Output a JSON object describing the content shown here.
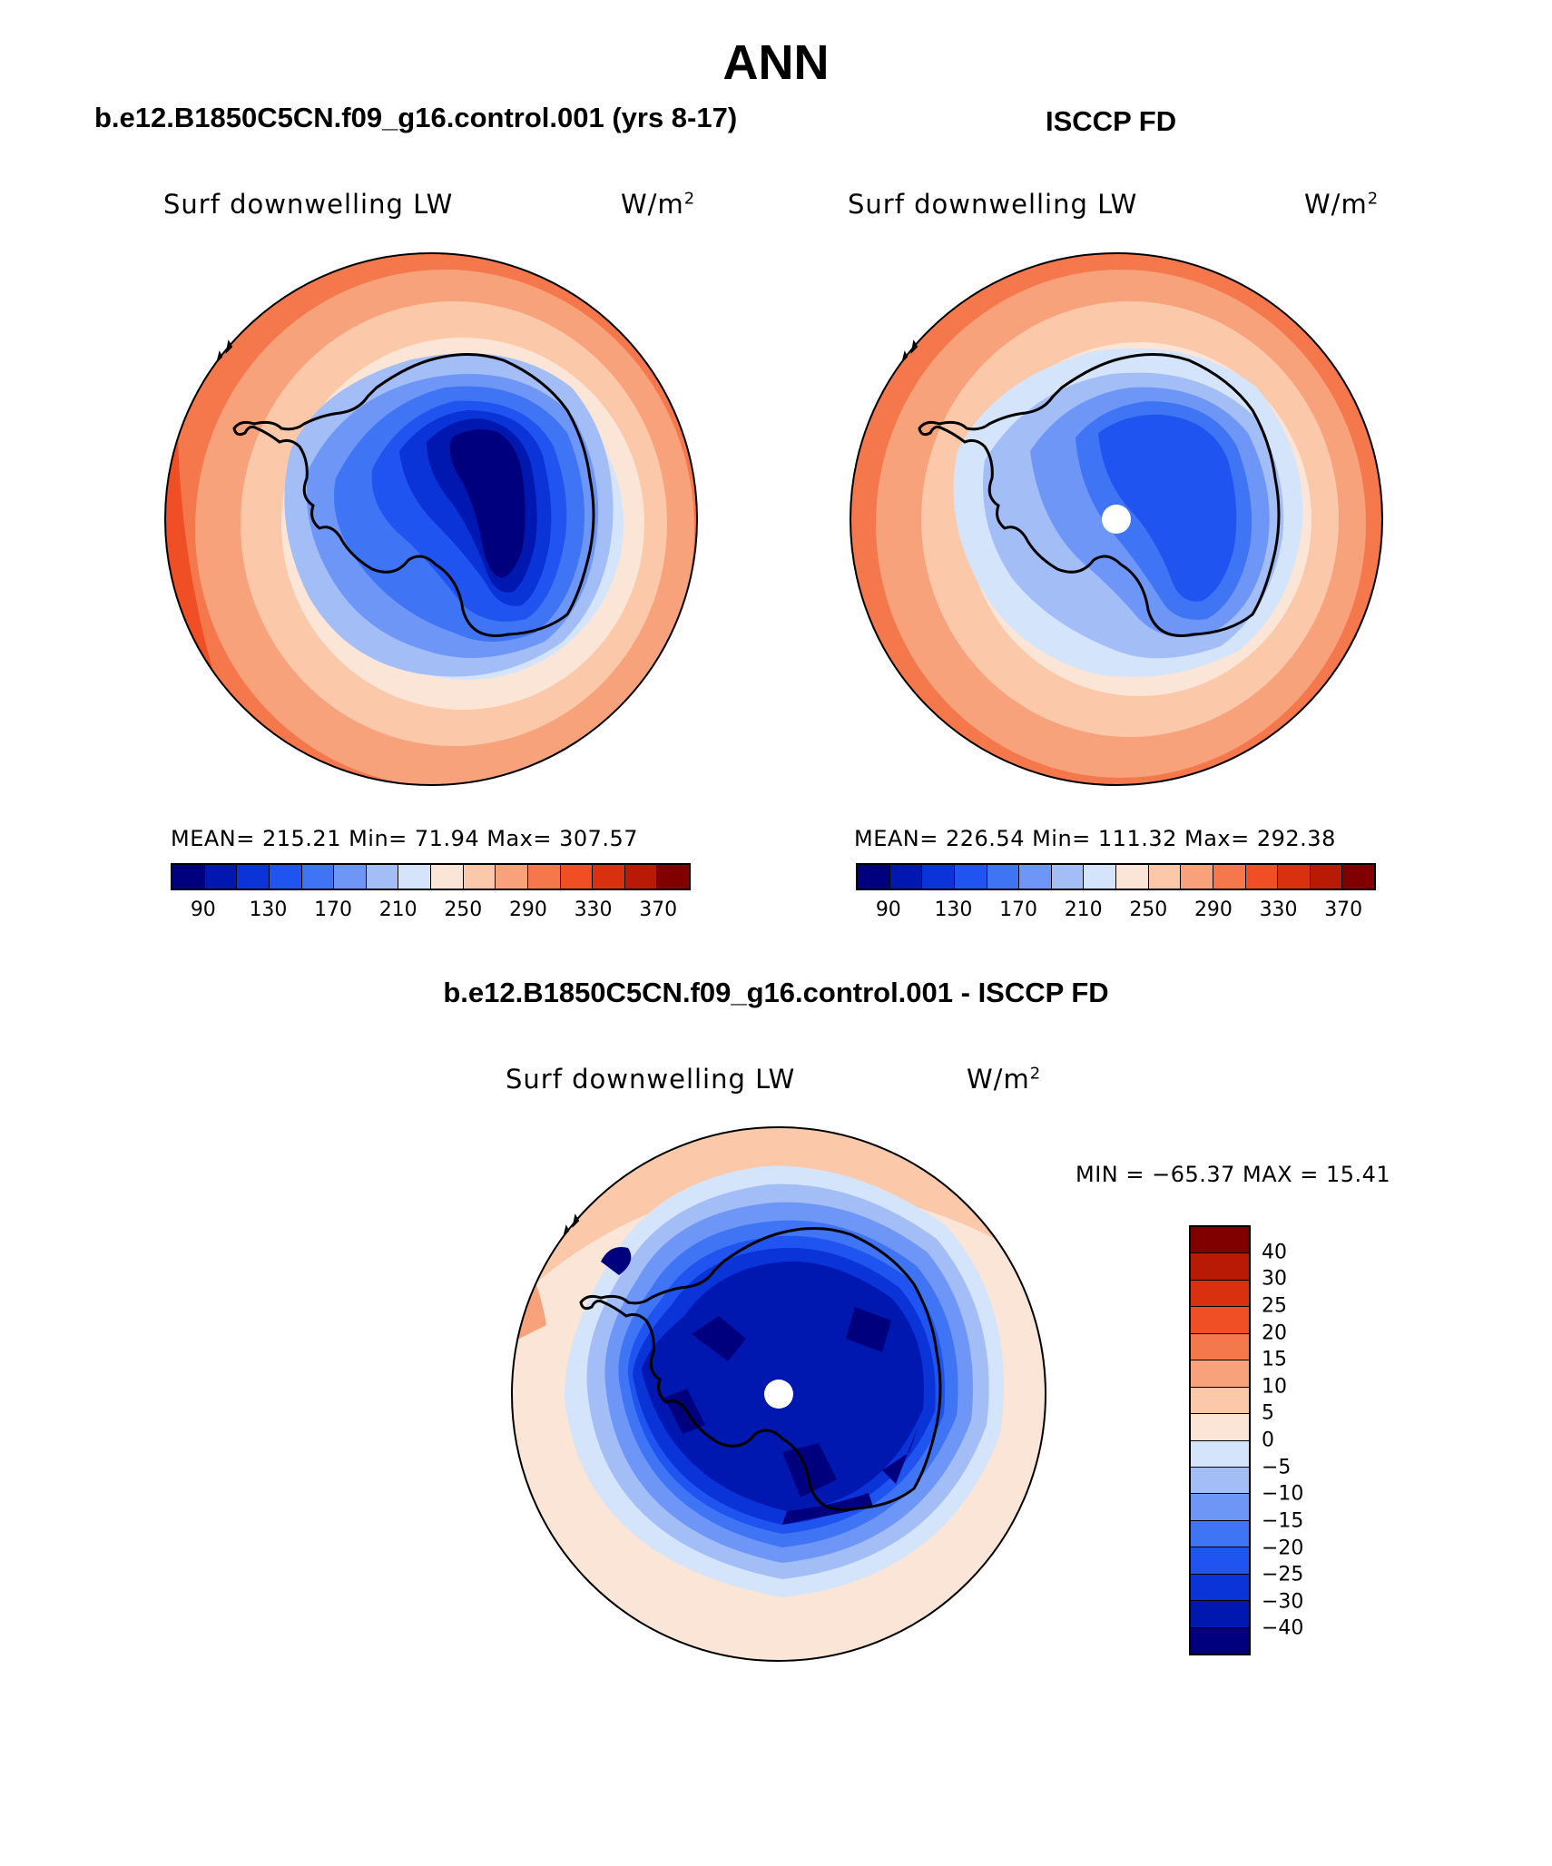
{
  "title": "ANN",
  "panels": {
    "model": {
      "case": "b.e12.B1850C5CN.f09_g16.control.001 (yrs 8-17)",
      "variable": "Surf downwelling LW",
      "units_base": "W/m",
      "units_exp": "2",
      "stats": "MEAN= 215.21   Min=   71.94   Max= 307.57"
    },
    "obs": {
      "case": "ISCCP FD",
      "variable": "Surf downwelling LW",
      "units_base": "W/m",
      "units_exp": "2",
      "stats": "MEAN= 226.54   Min= 111.32   Max= 292.38"
    },
    "diff": {
      "case": "b.e12.B1850C5CN.f09_g16.control.001 - ISCCP FD",
      "variable": "Surf downwelling LW",
      "units_base": "W/m",
      "units_exp": "2",
      "stats": "MIN = −65.37 MAX =   15.41"
    }
  },
  "colorbars": {
    "absolute": {
      "colors": [
        "#00007f",
        "#0017b0",
        "#0a34d8",
        "#1f54f0",
        "#3f74f5",
        "#6e96f7",
        "#a3bdf7",
        "#d4e4fa",
        "#fbe5d6",
        "#fbc9aa",
        "#f7a27a",
        "#f5784c",
        "#f04e24",
        "#d9300f",
        "#b81a05",
        "#800000"
      ],
      "tick_labels": [
        "90",
        "130",
        "170",
        "210",
        "250",
        "290",
        "330",
        "370"
      ]
    },
    "difference": {
      "colors": [
        "#00007f",
        "#0017b0",
        "#0a34d8",
        "#1f54f0",
        "#3f74f5",
        "#6e96f7",
        "#a3bdf7",
        "#d4e4fa",
        "#fbe5d6",
        "#fbc9aa",
        "#f7a27a",
        "#f5784c",
        "#f04e24",
        "#d9300f",
        "#b81a05",
        "#800000"
      ],
      "tick_labels": [
        "40",
        "30",
        "25",
        "20",
        "15",
        "10",
        "5",
        "0",
        "−5",
        "−10",
        "−15",
        "−20",
        "−25",
        "−30",
        "−40"
      ]
    }
  },
  "map": {
    "projection": "south polar stereographic",
    "coastline_color": "#000000"
  }
}
